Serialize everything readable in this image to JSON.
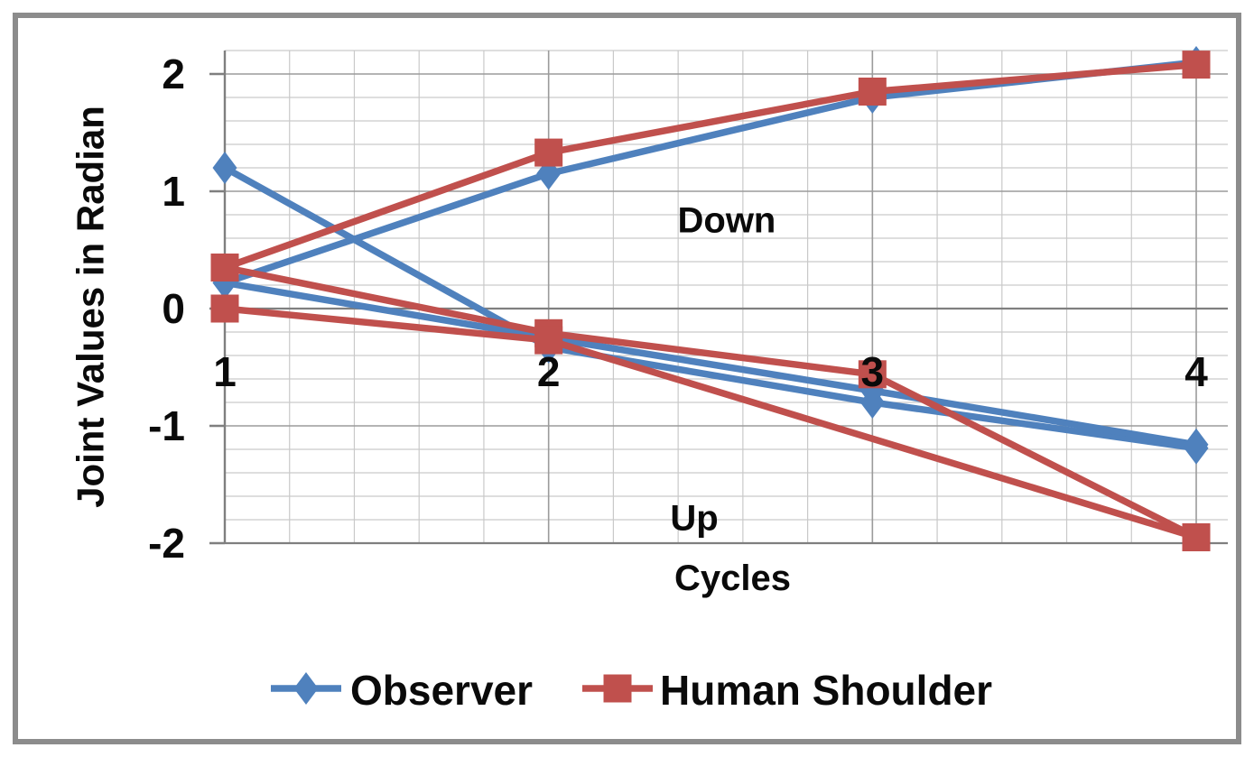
{
  "colors": {
    "observer": "#4F81BD",
    "human_shoulder": "#C0504D",
    "grid_minor": "#C9C9C9",
    "grid_major": "#9B9B9B",
    "axis": "#7F7F7F",
    "text": "#0A0A0A",
    "frame": "#8C8C8C",
    "background": "#FFFFFF"
  },
  "chart_data": {
    "type": "line",
    "title": "",
    "xlabel": "Cycles",
    "ylabel": "Joint Values in Radian",
    "xlim": [
      1,
      4
    ],
    "ylim": [
      -2,
      2.2
    ],
    "x_ticks": [
      1,
      2,
      3,
      4
    ],
    "x_tick_labels": [
      "1",
      "2",
      "3",
      "4"
    ],
    "y_ticks": [
      2,
      1,
      0,
      -1,
      -2
    ],
    "y_tick_labels": [
      "2",
      "1",
      "0",
      "-1",
      "-2"
    ],
    "minor_grid_step_x": 0.2,
    "minor_grid_step_y": 0.2,
    "grid": "on",
    "legend_position": "bottom",
    "legend": [
      {
        "label": "Observer",
        "color": "#4F81BD",
        "marker": "diamond"
      },
      {
        "label": "Human Shoulder",
        "color": "#C0504D",
        "marker": "square"
      }
    ],
    "annotations": [
      {
        "text": "Down",
        "x": 2.55,
        "y": 0.75
      },
      {
        "text": "Up",
        "x": 2.45,
        "y": -1.79
      }
    ],
    "series": [
      {
        "name": "observer-down",
        "legend": "Observer",
        "color": "#4F81BD",
        "marker": "diamond",
        "points": [
          [
            1,
            0.22
          ],
          [
            2,
            1.15
          ],
          [
            3,
            1.8
          ],
          [
            4,
            2.1
          ]
        ]
      },
      {
        "name": "observer-up-steep",
        "legend": "Observer",
        "color": "#4F81BD",
        "marker": "diamond",
        "points": [
          [
            1,
            1.2
          ],
          [
            2,
            -0.33
          ],
          [
            3,
            -0.8
          ],
          [
            4,
            -1.19
          ]
        ]
      },
      {
        "name": "observer-up-shallow",
        "legend": "Observer",
        "color": "#4F81BD",
        "marker": "diamond",
        "points": [
          [
            1,
            0.22
          ],
          [
            2,
            -0.25
          ],
          [
            3,
            -0.7
          ],
          [
            4,
            -1.16
          ]
        ]
      },
      {
        "name": "human-shoulder-down",
        "legend": "Human Shoulder",
        "color": "#C0504D",
        "marker": "square",
        "points": [
          [
            1,
            0.35
          ],
          [
            2,
            1.33
          ],
          [
            3,
            1.85
          ],
          [
            4,
            2.08
          ]
        ]
      },
      {
        "name": "human-shoulder-up-a",
        "legend": "Human Shoulder",
        "color": "#C0504D",
        "marker": "square",
        "points": [
          [
            1,
            0.35
          ],
          [
            2,
            -0.21
          ],
          [
            3,
            -0.56
          ],
          [
            4,
            -1.95
          ]
        ]
      },
      {
        "name": "human-shoulder-up-b",
        "legend": "Human Shoulder",
        "color": "#C0504D",
        "marker": "square",
        "points": [
          [
            1,
            0.0
          ],
          [
            2,
            -0.27
          ],
          [
            4,
            -1.95
          ]
        ]
      }
    ]
  }
}
